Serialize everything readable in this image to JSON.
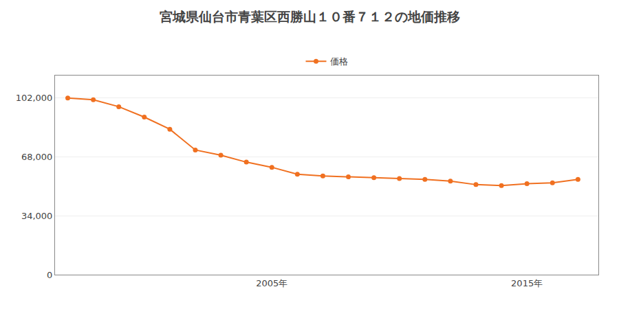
{
  "chart_data": {
    "type": "line",
    "title": "宮城県仙台市青葉区西勝山１０番７１２の地価推移",
    "x": [
      1997,
      1998,
      1999,
      2000,
      2001,
      2002,
      2003,
      2004,
      2005,
      2006,
      2007,
      2008,
      2009,
      2010,
      2011,
      2012,
      2013,
      2014,
      2015,
      2016,
      2017
    ],
    "series": [
      {
        "name": "価格",
        "color": "#f07020",
        "marker": "circle",
        "line_style": "solid",
        "values": [
          102000,
          101000,
          97000,
          91000,
          84000,
          72000,
          69000,
          65000,
          62000,
          58000,
          57000,
          56500,
          56000,
          55500,
          55000,
          54000,
          52000,
          51500,
          52500,
          53000,
          55000
        ]
      }
    ],
    "xlim": [
      1996.5,
      2017.8
    ],
    "xticks": [
      {
        "value": 2005,
        "label": "2005年"
      },
      {
        "value": 2015,
        "label": "2015年"
      }
    ],
    "ylim": [
      0,
      115000
    ],
    "yticks": [
      0,
      {
        "value": 34000,
        "label": "34,000"
      },
      {
        "value": 68000,
        "label": "68,000"
      },
      {
        "value": 102000,
        "label": "102,000"
      }
    ],
    "grid": "y",
    "legend": "top"
  }
}
